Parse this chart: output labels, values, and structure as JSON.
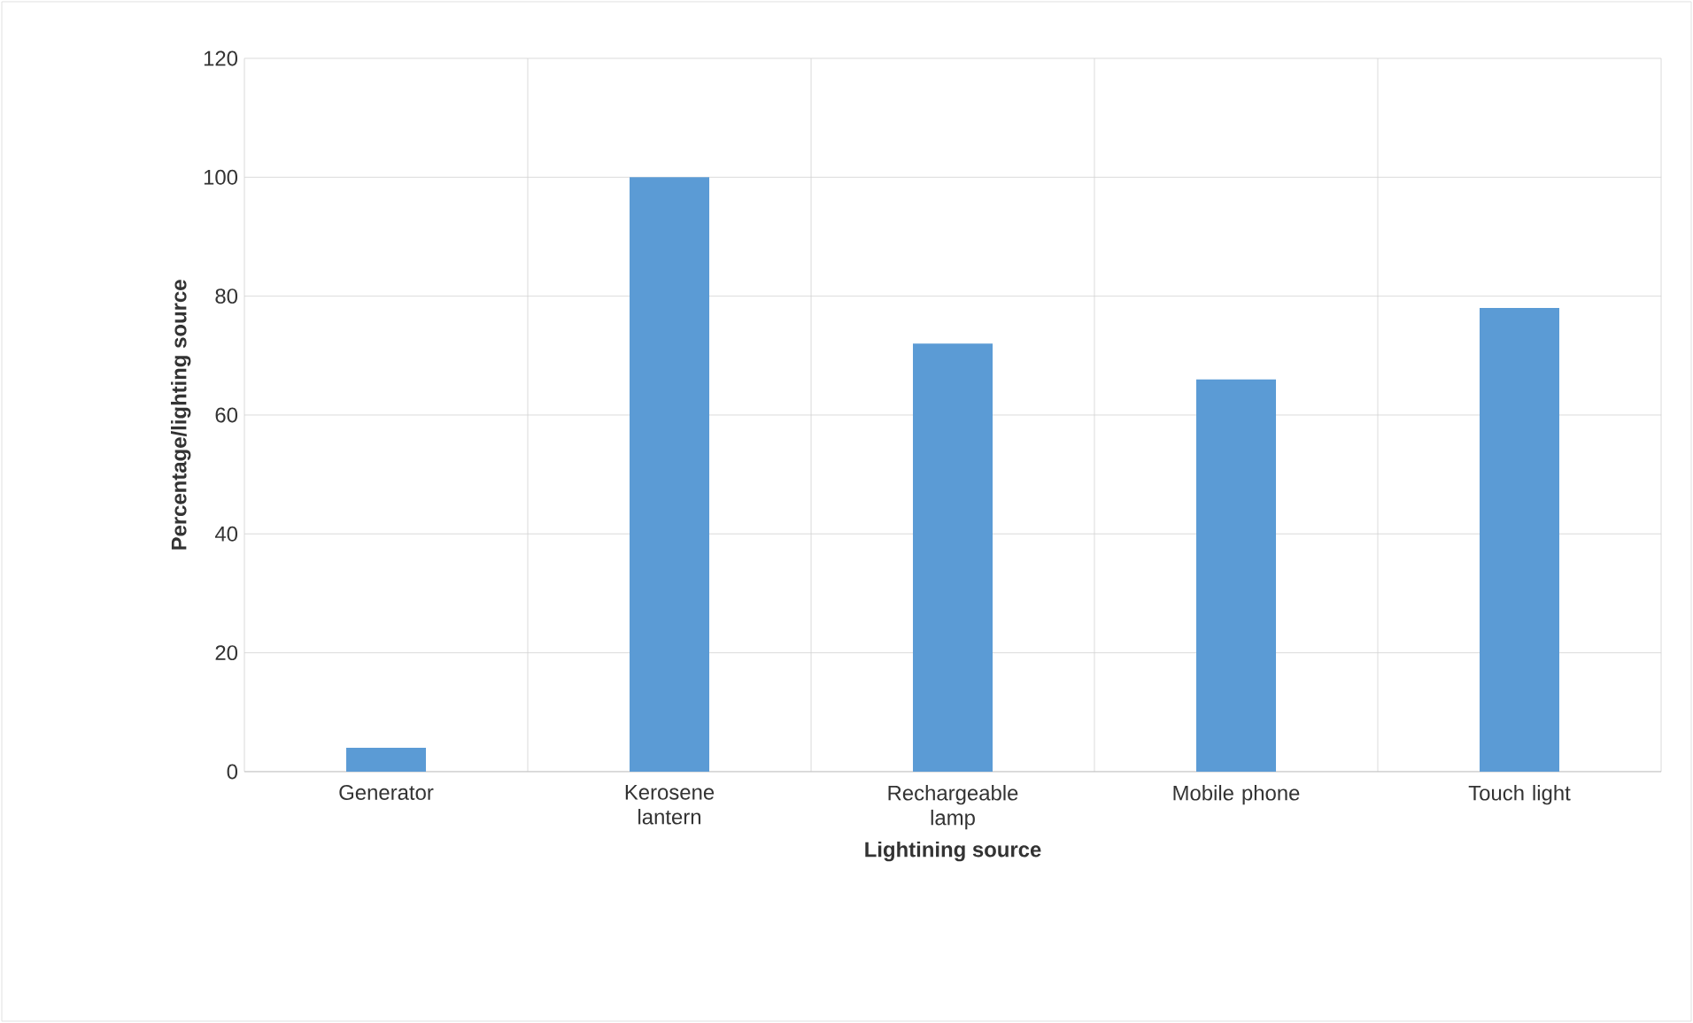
{
  "chart_data": {
    "type": "bar",
    "xlabel": "Lightining source",
    "ylabel": "Percentage/lighting source",
    "categories": [
      "Generator",
      "Kerosene lantern",
      "Rechargeable lamp",
      "Mobile phone",
      "Touch light"
    ],
    "values": [
      4,
      100,
      72,
      66,
      78
    ],
    "color": "#5b9bd5",
    "ylim": [
      0,
      120
    ],
    "yticks": [
      0,
      20,
      40,
      60,
      80,
      100,
      120
    ],
    "grid": true
  }
}
